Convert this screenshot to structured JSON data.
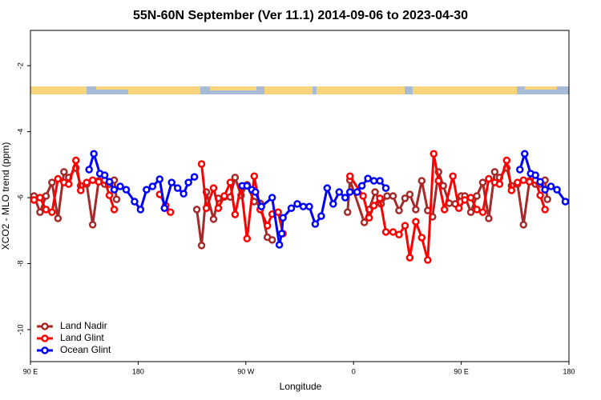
{
  "chart_data": {
    "type": "line",
    "title": "55N-60N September (Ver 11.1)   2014-09-06 to 2023-04-30",
    "x_label": "Longitude",
    "y_label": "XCO2 - MLO trend (ppm)",
    "xlim": [
      90,
      540
    ],
    "ylim": [
      -10.97,
      -0.93
    ],
    "xticks": [
      {
        "value": 90,
        "label": "90 E"
      },
      {
        "value": 180,
        "label": "180"
      },
      {
        "value": 270,
        "label": "90 W"
      },
      {
        "value": 360,
        "label": "0"
      },
      {
        "value": 450,
        "label": "90 E"
      },
      {
        "value": 540,
        "label": "180"
      }
    ],
    "yticks": [
      -2,
      -4,
      -6,
      -8,
      -10
    ],
    "legend": "bottom-left",
    "series": [
      {
        "name": "Land Nadir",
        "color": "#a52a2a",
        "x": [
          93,
          98,
          103,
          108,
          113,
          118,
          122,
          128,
          132,
          137,
          142,
          147,
          152,
          156,
          160,
          162,
          195,
          229,
          233,
          237,
          243,
          247,
          252,
          257,
          261,
          266,
          271,
          277,
          282,
          288,
          292,
          320,
          355,
          357,
          369,
          373,
          378,
          383,
          388,
          393,
          398,
          403,
          407,
          412,
          417,
          422,
          426,
          431,
          435,
          440,
          445,
          450,
          453,
          458,
          463,
          468,
          473,
          478,
          482,
          488,
          492,
          497,
          502,
          507,
          512,
          516,
          520,
          522
        ],
        "values": [
          -5.95,
          -6.44,
          -5.95,
          -5.54,
          -6.63,
          -5.22,
          -5.39,
          -5.1,
          -5.64,
          -5.59,
          -6.82,
          -5.49,
          -5.59,
          -5.59,
          -5.47,
          -6.05,
          null,
          -6.36,
          -7.45,
          -5.83,
          -6.65,
          -6.02,
          -5.98,
          -5.98,
          -5.39,
          -5.93,
          -5.61,
          -6.12,
          -6.17,
          -7.2,
          -7.28,
          null,
          -6.44,
          -5.47,
          -6.75,
          -6.36,
          -5.83,
          -6.19,
          -5.95,
          -5.95,
          -6.39,
          -6.02,
          -5.9,
          -6.36,
          -5.49,
          -6.39,
          -6.58,
          -5.22,
          -5.64,
          -6.17,
          -6.19,
          -5.95,
          -5.95,
          -6.44,
          -5.95,
          -5.54,
          -6.63,
          -5.22,
          -5.39,
          -5.1,
          -5.64,
          -5.59,
          -6.82,
          -5.49,
          -5.59,
          -5.59,
          -5.47,
          -6.05
        ]
      },
      {
        "name": "Land Glint",
        "color": "#ff0000",
        "x": [
          93,
          98,
          103,
          108,
          113,
          118,
          122,
          128,
          132,
          137,
          142,
          147,
          152,
          156,
          160,
          180,
          198,
          203,
          207,
          220,
          233,
          237,
          243,
          247,
          252,
          257,
          261,
          266,
          271,
          277,
          282,
          288,
          292,
          297,
          301,
          330,
          357,
          368,
          373,
          377,
          382,
          387,
          393,
          398,
          403,
          407,
          412,
          417,
          422,
          427,
          431,
          436,
          443,
          448,
          453,
          458,
          463,
          468,
          473,
          478,
          482,
          488,
          492,
          497,
          502,
          507,
          512,
          516,
          520
        ],
        "values": [
          -6.07,
          -6.0,
          -6.36,
          -6.44,
          -5.43,
          -5.54,
          -5.59,
          -4.87,
          -5.78,
          -5.54,
          -5.47,
          -5.52,
          -5.47,
          -5.93,
          -6.36,
          null,
          -5.9,
          -6.24,
          -6.44,
          null,
          -4.98,
          -6.32,
          -5.71,
          -6.32,
          -5.95,
          -5.54,
          -6.51,
          -5.66,
          -7.24,
          -5.35,
          -6.36,
          -6.85,
          -6.5,
          -6.44,
          -7.09,
          null,
          -5.35,
          -5.95,
          -6.61,
          -6.24,
          -6.02,
          -7.04,
          -7.04,
          -7.12,
          -6.85,
          -7.82,
          -6.73,
          -7.21,
          -7.89,
          -4.67,
          -5.49,
          -6.36,
          -5.35,
          -6.32,
          -6.07,
          -6.0,
          -6.36,
          -6.44,
          -5.43,
          -5.54,
          -5.59,
          -4.87,
          -5.78,
          -5.54,
          -5.47,
          -5.52,
          -5.47,
          -5.93,
          -6.36
        ]
      },
      {
        "name": "Ocean Glint",
        "color": "#0000ff",
        "x": [
          139,
          143,
          148,
          152,
          156,
          160,
          165,
          170,
          177,
          182,
          187,
          192,
          198,
          202,
          208,
          213,
          218,
          222,
          227,
          250,
          267,
          271,
          275,
          278,
          283,
          292,
          298,
          300,
          301,
          308,
          313,
          318,
          323,
          328,
          333,
          338,
          343,
          348,
          353,
          357,
          363,
          367,
          372,
          377,
          382,
          387,
          440,
          499,
          503,
          508,
          512,
          516,
          520,
          525,
          530,
          537
        ],
        "values": [
          -5.15,
          -4.67,
          -5.27,
          -5.32,
          -5.52,
          -5.76,
          -5.66,
          -5.76,
          -6.12,
          -6.36,
          -5.76,
          -5.66,
          -5.44,
          -6.32,
          -5.54,
          -5.71,
          -5.88,
          -5.54,
          -5.37,
          null,
          -5.64,
          -5.64,
          -5.76,
          -5.83,
          -6.27,
          -6.0,
          -7.43,
          -7.09,
          -6.61,
          -6.32,
          -6.19,
          -6.27,
          -6.27,
          -6.8,
          -6.56,
          -5.71,
          -6.19,
          -5.83,
          -6.0,
          -5.83,
          -5.83,
          -5.64,
          -5.42,
          -5.49,
          -5.49,
          -5.71,
          null,
          -5.15,
          -4.67,
          -5.27,
          -5.32,
          -5.52,
          -5.76,
          -5.66,
          -5.76,
          -6.12
        ]
      }
    ]
  }
}
